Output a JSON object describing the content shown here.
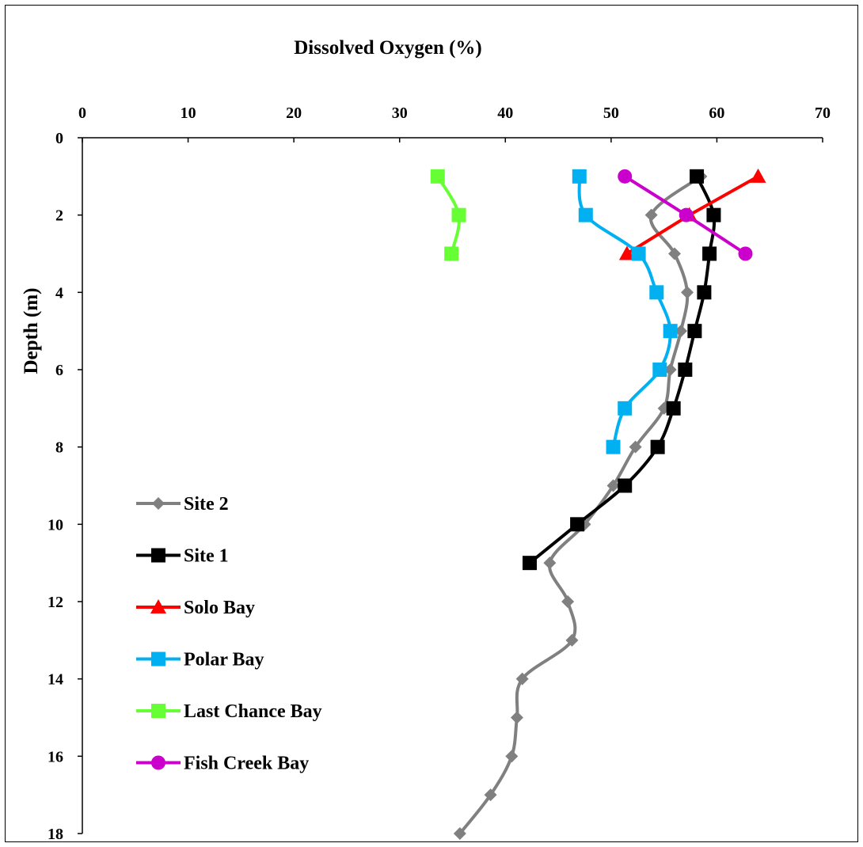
{
  "chart_data": {
    "type": "line",
    "title": "Dissolved Oxygen (%)",
    "xlabel": "",
    "ylabel": "Depth (m)",
    "x_axis_position": "top",
    "y_axis_inverted": true,
    "xlim": [
      0,
      70
    ],
    "ylim": [
      0,
      18
    ],
    "x_ticks": [
      0,
      10,
      20,
      30,
      40,
      50,
      60,
      70
    ],
    "y_ticks": [
      0,
      2,
      4,
      6,
      8,
      10,
      12,
      14,
      16,
      18
    ],
    "grid": false,
    "legend_position": "bottom-left",
    "series": [
      {
        "name": "Site 2",
        "color": "#808080",
        "marker": "diamond",
        "points": [
          [
            58.5,
            1
          ],
          [
            53.8,
            2
          ],
          [
            56.0,
            3
          ],
          [
            57.2,
            4
          ],
          [
            56.6,
            5
          ],
          [
            55.6,
            6
          ],
          [
            55.0,
            7
          ],
          [
            52.3,
            8
          ],
          [
            50.2,
            9
          ],
          [
            47.5,
            10
          ],
          [
            44.2,
            11
          ],
          [
            45.9,
            12
          ],
          [
            46.3,
            13
          ],
          [
            41.6,
            14
          ],
          [
            41.1,
            15
          ],
          [
            40.6,
            16
          ],
          [
            38.6,
            17
          ],
          [
            35.7,
            18
          ]
        ]
      },
      {
        "name": "Site 1",
        "color": "#000000",
        "marker": "square",
        "points": [
          [
            58.1,
            1
          ],
          [
            59.7,
            2
          ],
          [
            59.3,
            3
          ],
          [
            58.8,
            4
          ],
          [
            57.9,
            5
          ],
          [
            57.0,
            6
          ],
          [
            55.9,
            7
          ],
          [
            54.4,
            8
          ],
          [
            51.3,
            9
          ],
          [
            46.8,
            10
          ],
          [
            42.3,
            11
          ]
        ]
      },
      {
        "name": "Solo Bay",
        "color": "#ff0000",
        "marker": "triangle",
        "points": [
          [
            63.9,
            1
          ],
          [
            57.4,
            2
          ],
          [
            51.5,
            3
          ]
        ]
      },
      {
        "name": "Polar Bay",
        "color": "#00b0f0",
        "marker": "square",
        "points": [
          [
            47.0,
            1
          ],
          [
            47.6,
            2
          ],
          [
            52.6,
            3
          ],
          [
            54.3,
            4
          ],
          [
            55.6,
            5
          ],
          [
            54.6,
            6
          ],
          [
            51.3,
            7
          ],
          [
            50.2,
            8
          ]
        ]
      },
      {
        "name": "Last Chance Bay",
        "color": "#66ff33",
        "marker": "square",
        "points": [
          [
            33.6,
            1
          ],
          [
            35.6,
            2
          ],
          [
            34.9,
            3
          ]
        ]
      },
      {
        "name": "Fish Creek Bay",
        "color": "#cc00cc",
        "marker": "circle",
        "points": [
          [
            51.3,
            1
          ],
          [
            57.1,
            2
          ],
          [
            62.7,
            3
          ]
        ]
      }
    ]
  }
}
